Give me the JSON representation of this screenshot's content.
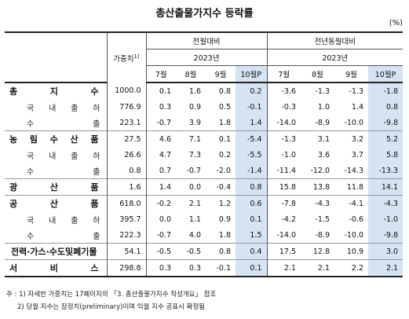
{
  "title": "총산출물가지수 등락률",
  "unit": "(%)",
  "headers": {
    "weight": "가중치",
    "weight_sup": "1)",
    "mom_group": "전월대비",
    "yoy_group": "전년동월대비",
    "mom_year": "2023년",
    "yoy_year": "2023년",
    "months": [
      "7월",
      "8월",
      "9월",
      "10월P"
    ]
  },
  "rows": [
    {
      "label": [
        "총",
        "지",
        "수"
      ],
      "level": "major",
      "weight": "1000.0",
      "mom": [
        "0.1",
        "1.6",
        "0.8",
        "0.2"
      ],
      "yoy": [
        "-3.6",
        "-1.3",
        "-1.3",
        "-1.8"
      ]
    },
    {
      "label": [
        "국",
        "내",
        "출",
        "하"
      ],
      "level": "minor",
      "weight": "776.9",
      "mom": [
        "0.3",
        "0.9",
        "0.5",
        "-0.1"
      ],
      "yoy": [
        "-0.3",
        "1.0",
        "1.4",
        "0.8"
      ]
    },
    {
      "label": [
        "수",
        "출"
      ],
      "level": "minor",
      "weight": "223.1",
      "mom": [
        "-0.7",
        "3.9",
        "1.8",
        "1.4"
      ],
      "yoy": [
        "-14.0",
        "-8.9",
        "-10.0",
        "-9.8"
      ]
    },
    {
      "label": [
        "농",
        "림",
        "수",
        "산",
        "품"
      ],
      "level": "major",
      "weight": "27.5",
      "mom": [
        "4.6",
        "7.1",
        "0.1",
        "-5.4"
      ],
      "yoy": [
        "-1.3",
        "3.1",
        "3.2",
        "5.2"
      ]
    },
    {
      "label": [
        "국",
        "내",
        "출",
        "하"
      ],
      "level": "minor",
      "weight": "26.6",
      "mom": [
        "4.7",
        "7.3",
        "0.2",
        "-5.5"
      ],
      "yoy": [
        "-1.0",
        "3.6",
        "3.7",
        "5.8"
      ]
    },
    {
      "label": [
        "수",
        "출"
      ],
      "level": "minor",
      "weight": "0.8",
      "mom": [
        "0.7",
        "-0.7",
        "-2.0",
        "-1.4"
      ],
      "yoy": [
        "-11.4",
        "-12.0",
        "-14.3",
        "-13.3"
      ]
    },
    {
      "label": [
        "광",
        "산",
        "품"
      ],
      "level": "major",
      "weight": "1.6",
      "mom": [
        "1.4",
        "0.0",
        "-0.4",
        "0.8"
      ],
      "yoy": [
        "15.8",
        "13.8",
        "11.8",
        "14.1"
      ]
    },
    {
      "label": [
        "공",
        "산",
        "품"
      ],
      "level": "major",
      "weight": "618.0",
      "mom": [
        "-0.2",
        "2.1",
        "1.2",
        "0.6"
      ],
      "yoy": [
        "-7.8",
        "-4.3",
        "-4.1",
        "-4.3"
      ]
    },
    {
      "label": [
        "국",
        "내",
        "출",
        "하"
      ],
      "level": "minor",
      "weight": "395.7",
      "mom": [
        "0.0",
        "1.1",
        "0.9",
        "0.1"
      ],
      "yoy": [
        "-4.2",
        "-1.5",
        "-0.6",
        "-1.0"
      ]
    },
    {
      "label": [
        "수",
        "출"
      ],
      "level": "minor",
      "weight": "222.3",
      "mom": [
        "-0.7",
        "4.0",
        "1.8",
        "1.5"
      ],
      "yoy": [
        "-14.0",
        "-8.9",
        "-10.0",
        "-9.8"
      ]
    },
    {
      "label": [
        "전력·가스·수도및폐기물"
      ],
      "level": "major",
      "weight": "54.1",
      "mom": [
        "-0.5",
        "-0.5",
        "0.8",
        "0.4"
      ],
      "yoy": [
        "17.5",
        "12.8",
        "10.9",
        "3.0"
      ]
    },
    {
      "label": [
        "서",
        "비",
        "스"
      ],
      "level": "major",
      "weight": "298.8",
      "mom": [
        "0.3",
        "0.3",
        "-0.1",
        "0.1"
      ],
      "yoy": [
        "2.1",
        "2.1",
        "2.2",
        "2.1"
      ]
    }
  ],
  "footnotes": [
    "주 : 1) 자세한 가중치는 17페이지의 「3. 총산출물가지수 작성개요」 참조",
    "2) 당월 지수는 잠정치(preliminary)이며 익월 지수 공표시 확정됨"
  ]
}
